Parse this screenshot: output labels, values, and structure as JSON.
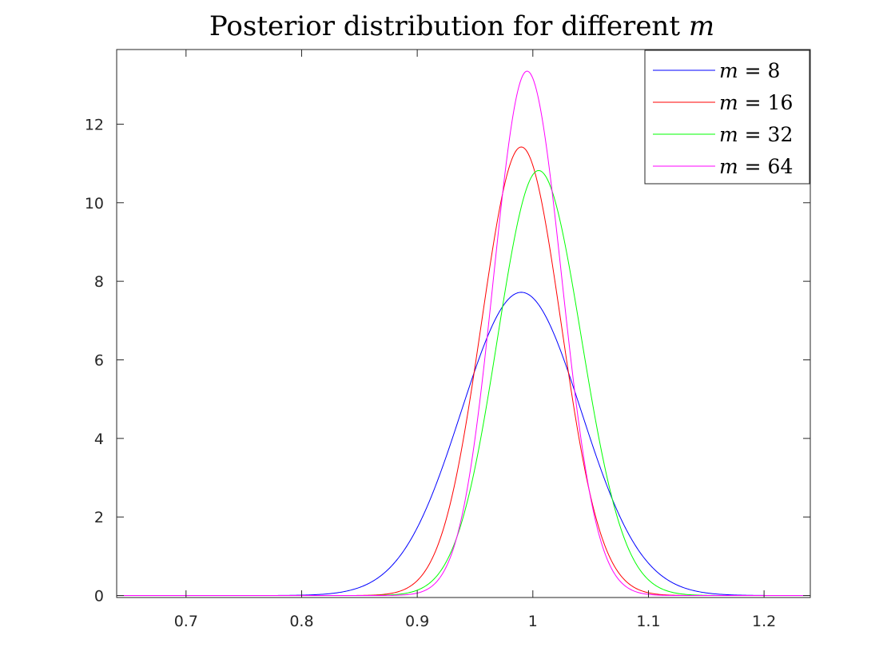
{
  "chart_data": {
    "type": "line",
    "title": {
      "text": "Posterior distribution for different ",
      "var": "m"
    },
    "xlabel": "",
    "ylabel": "",
    "xlim": [
      0.64,
      1.24
    ],
    "ylim": [
      -0.05,
      13.9
    ],
    "xticks": [
      0.7,
      0.8,
      0.9,
      1.0,
      1.1,
      1.2
    ],
    "xtick_labels": [
      "0.7",
      "0.8",
      "0.9",
      "1",
      "1.1",
      "1.2"
    ],
    "yticks": [
      0,
      2,
      4,
      6,
      8,
      10,
      12
    ],
    "ytick_labels": [
      "0",
      "2",
      "4",
      "6",
      "8",
      "10",
      "12"
    ],
    "grid": false,
    "legend_position": "top-right",
    "series": [
      {
        "name": "m = 8",
        "var": "m",
        "eq": " = 8",
        "color": "#0000ff",
        "peak_x": 0.99,
        "peak_y": 7.72,
        "sd_left": 0.052,
        "sd_right": 0.052
      },
      {
        "name": "m = 16",
        "var": "m",
        "eq": " = 16",
        "color": "#ff0000",
        "peak_x": 0.99,
        "peak_y": 11.42,
        "sd_left": 0.0345,
        "sd_right": 0.0345
      },
      {
        "name": "m = 32",
        "var": "m",
        "eq": " = 32",
        "color": "#00ff00",
        "peak_x": 1.005,
        "peak_y": 10.82,
        "sd_left": 0.0355,
        "sd_right": 0.037
      },
      {
        "name": "m = 64",
        "var": "m",
        "eq": " = 64",
        "color": "#ff00ff",
        "peak_x": 0.995,
        "peak_y": 13.35,
        "sd_left": 0.029,
        "sd_right": 0.03
      }
    ]
  }
}
